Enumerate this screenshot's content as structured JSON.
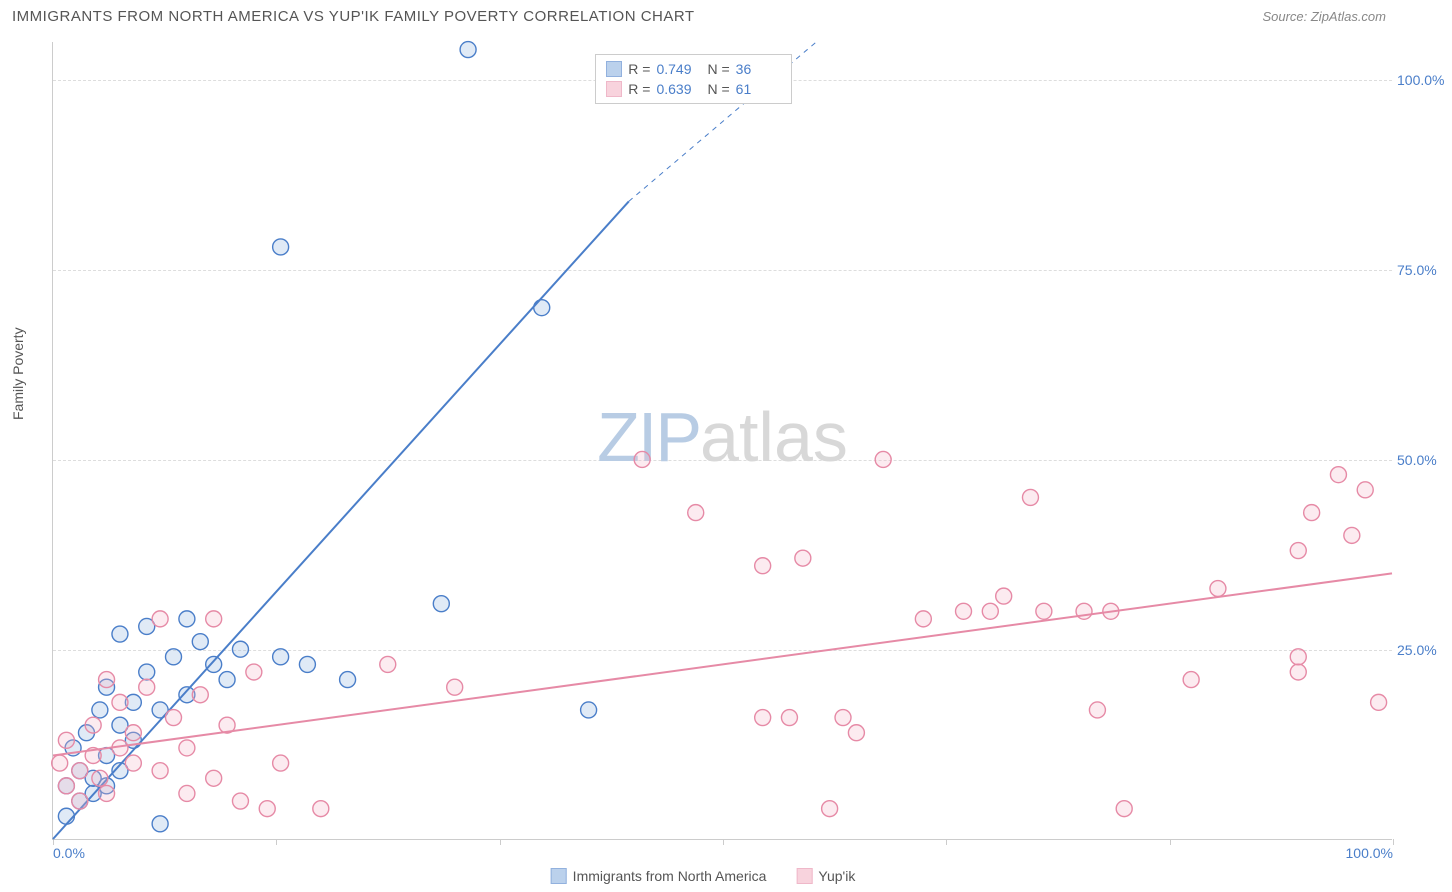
{
  "header": {
    "title": "IMMIGRANTS FROM NORTH AMERICA VS YUP'IK FAMILY POVERTY CORRELATION CHART",
    "source_label": "Source: ",
    "source_value": "ZipAtlas.com"
  },
  "watermark": {
    "zip": "ZIP",
    "atlas": "atlas"
  },
  "chart": {
    "type": "scatter",
    "background_color": "#ffffff",
    "grid_color": "#dddddd",
    "axis_color": "#cccccc",
    "label_color": "#555555",
    "tick_color": "#4a7ec9",
    "ylabel": "Family Poverty",
    "xlim": [
      0,
      100
    ],
    "ylim": [
      0,
      105
    ],
    "yticks": [
      25,
      50,
      75,
      100
    ],
    "ytick_labels": [
      "25.0%",
      "50.0%",
      "75.0%",
      "100.0%"
    ],
    "xticks": [
      0,
      16.67,
      33.33,
      50,
      66.67,
      83.33,
      100
    ],
    "xtick_labels": [
      "0.0%",
      "",
      "",
      "",
      "",
      "",
      "100.0%"
    ],
    "label_fontsize": 14,
    "tick_fontsize": 14,
    "marker_radius": 8,
    "marker_fill_opacity": 0.28,
    "marker_stroke_width": 1.4,
    "line_width": 2,
    "series": [
      {
        "id": "blue",
        "name": "Immigrants from North America",
        "color_stroke": "#4a7ec9",
        "color_fill": "#8fb3e0",
        "r": "0.749",
        "n": "36",
        "trend_solid": {
          "x1": 0,
          "y1": 0,
          "x2": 43,
          "y2": 84
        },
        "trend_dashed": {
          "x1": 43,
          "y1": 84,
          "x2": 57,
          "y2": 105
        },
        "points": [
          [
            1,
            7
          ],
          [
            1,
            3
          ],
          [
            1.5,
            12
          ],
          [
            2,
            9
          ],
          [
            2,
            5
          ],
          [
            2.5,
            14
          ],
          [
            3,
            6
          ],
          [
            3,
            8
          ],
          [
            3.5,
            17
          ],
          [
            4,
            11
          ],
          [
            4,
            7
          ],
          [
            4,
            20
          ],
          [
            5,
            15
          ],
          [
            5,
            27
          ],
          [
            5,
            9
          ],
          [
            6,
            13
          ],
          [
            6,
            18
          ],
          [
            7,
            22
          ],
          [
            7,
            28
          ],
          [
            8,
            17
          ],
          [
            8,
            2
          ],
          [
            9,
            24
          ],
          [
            10,
            29
          ],
          [
            10,
            19
          ],
          [
            11,
            26
          ],
          [
            12,
            23
          ],
          [
            13,
            21
          ],
          [
            14,
            25
          ],
          [
            17,
            24
          ],
          [
            17,
            78
          ],
          [
            19,
            23
          ],
          [
            22,
            21
          ],
          [
            29,
            31
          ],
          [
            31,
            104
          ],
          [
            36.5,
            70
          ],
          [
            40,
            17
          ]
        ]
      },
      {
        "id": "pink",
        "name": "Yup'ik",
        "color_stroke": "#e68aa6",
        "color_fill": "#f4b6c8",
        "r": "0.639",
        "n": "61",
        "trend_solid": {
          "x1": 0,
          "y1": 11,
          "x2": 100,
          "y2": 35
        },
        "trend_dashed": null,
        "points": [
          [
            0.5,
            10
          ],
          [
            1,
            7
          ],
          [
            1,
            13
          ],
          [
            2,
            9
          ],
          [
            2,
            5
          ],
          [
            3,
            11
          ],
          [
            3,
            15
          ],
          [
            3.5,
            8
          ],
          [
            4,
            21
          ],
          [
            4,
            6
          ],
          [
            5,
            12
          ],
          [
            5,
            18
          ],
          [
            6,
            10
          ],
          [
            6,
            14
          ],
          [
            7,
            20
          ],
          [
            8,
            9
          ],
          [
            8,
            29
          ],
          [
            9,
            16
          ],
          [
            10,
            12
          ],
          [
            10,
            6
          ],
          [
            11,
            19
          ],
          [
            12,
            8
          ],
          [
            12,
            29
          ],
          [
            13,
            15
          ],
          [
            14,
            5
          ],
          [
            15,
            22
          ],
          [
            16,
            4
          ],
          [
            17,
            10
          ],
          [
            20,
            4
          ],
          [
            25,
            23
          ],
          [
            30,
            20
          ],
          [
            44,
            50
          ],
          [
            48,
            43
          ],
          [
            53,
            36
          ],
          [
            53,
            16
          ],
          [
            55,
            16
          ],
          [
            56,
            37
          ],
          [
            58,
            4
          ],
          [
            59,
            16
          ],
          [
            60,
            14
          ],
          [
            62,
            50
          ],
          [
            65,
            29
          ],
          [
            68,
            30
          ],
          [
            70,
            30
          ],
          [
            71,
            32
          ],
          [
            73,
            45
          ],
          [
            74,
            30
          ],
          [
            77,
            30
          ],
          [
            78,
            17
          ],
          [
            79,
            30
          ],
          [
            80,
            4
          ],
          [
            85,
            21
          ],
          [
            87,
            33
          ],
          [
            93,
            38
          ],
          [
            93,
            22
          ],
          [
            93,
            24
          ],
          [
            94,
            43
          ],
          [
            96,
            48
          ],
          [
            97,
            40
          ],
          [
            98,
            46
          ],
          [
            99,
            18
          ]
        ]
      }
    ],
    "top_legend": {
      "left_pct": 40.5,
      "top_pct": 1.5
    },
    "bottom_legend": {
      "items": [
        {
          "label": "Immigrants from North America",
          "fill": "#8fb3e0",
          "stroke": "#4a7ec9"
        },
        {
          "label": "Yup'ik",
          "fill": "#f4b6c8",
          "stroke": "#e68aa6"
        }
      ]
    }
  }
}
